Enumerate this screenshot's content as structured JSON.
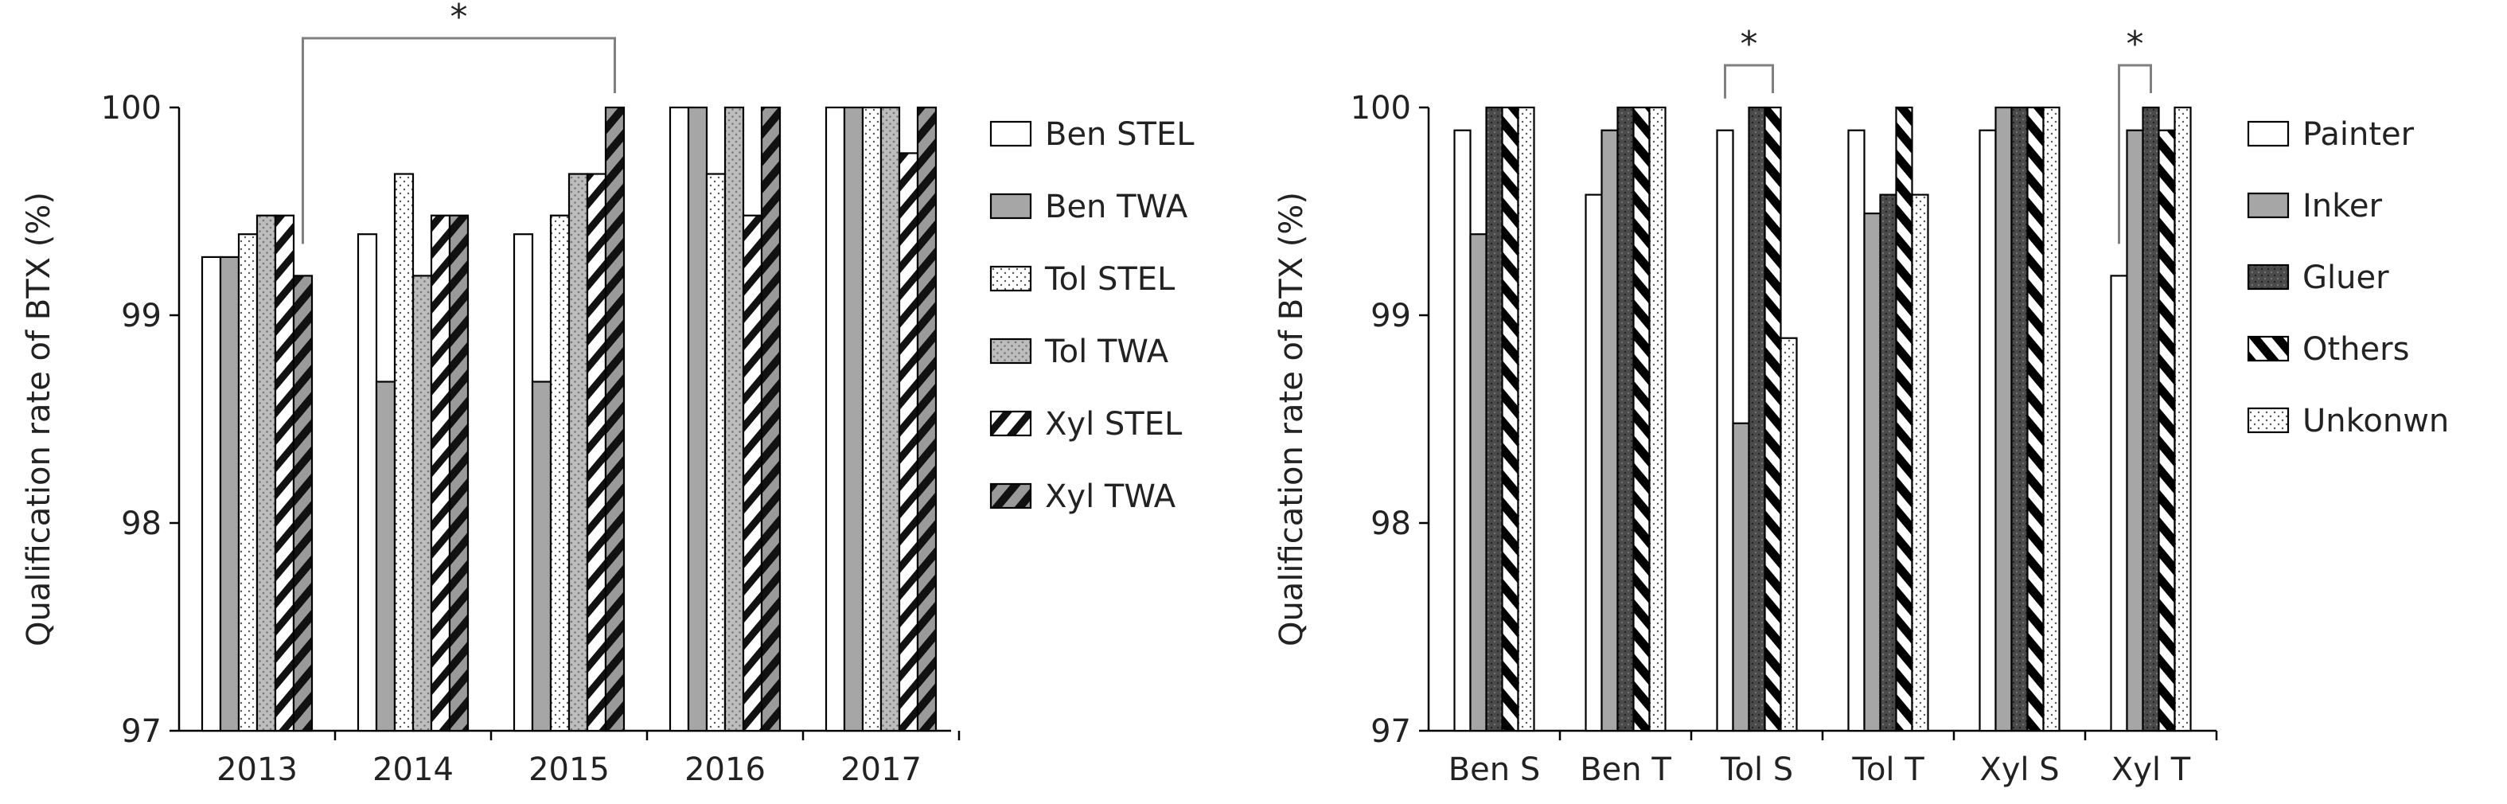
{
  "chart_data": [
    {
      "type": "bar",
      "title": "",
      "xlabel": "",
      "ylabel": "Qualification rate of BTX (%)",
      "ylim": [
        97,
        100
      ],
      "yticks": [
        "97",
        "98",
        "99",
        "100"
      ],
      "grid": false,
      "legend_position": "right",
      "categories": [
        "2013",
        "2014",
        "2015",
        "2016",
        "2017"
      ],
      "series": [
        {
          "name": "Ben STEL",
          "pattern": "white",
          "values": [
            99.28,
            99.39,
            99.39,
            100.0,
            100.0
          ]
        },
        {
          "name": "Ben TWA",
          "pattern": "gray",
          "values": [
            99.28,
            98.68,
            98.68,
            100.0,
            100.0
          ]
        },
        {
          "name": "Tol STEL",
          "pattern": "dotted",
          "values": [
            99.39,
            99.68,
            99.48,
            99.68,
            100.0
          ]
        },
        {
          "name": "Tol TWA",
          "pattern": "gray-dotted",
          "values": [
            99.48,
            99.19,
            99.68,
            100.0,
            100.0
          ]
        },
        {
          "name": "Xyl STEL",
          "pattern": "hatch-thin",
          "values": [
            99.48,
            99.48,
            99.68,
            99.48,
            99.78
          ]
        },
        {
          "name": "Xyl TWA",
          "pattern": "hatch-thick-gray",
          "values": [
            99.19,
            99.48,
            100.0,
            100.0,
            100.0
          ]
        }
      ],
      "annotations": [
        {
          "text": "*",
          "from": {
            "category": "2013",
            "series": 5
          },
          "to": {
            "category": "2015",
            "series": 5
          }
        }
      ]
    },
    {
      "type": "bar",
      "title": "",
      "xlabel": "",
      "ylabel": "Qualification rate of BTX (%)",
      "ylim": [
        97,
        100
      ],
      "yticks": [
        "97",
        "98",
        "99",
        "100"
      ],
      "grid": false,
      "legend_position": "right",
      "categories": [
        "Ben S",
        "Ben T",
        "Tol S",
        "Tol T",
        "Xyl S",
        "Xyl T"
      ],
      "series": [
        {
          "name": "Painter",
          "pattern": "white",
          "values": [
            99.89,
            99.58,
            99.89,
            99.89,
            99.89,
            99.19
          ]
        },
        {
          "name": "Inker",
          "pattern": "gray",
          "values": [
            99.39,
            99.89,
            98.48,
            99.49,
            100.0,
            99.89
          ]
        },
        {
          "name": "Gluer",
          "pattern": "dark-dotted",
          "values": [
            100.0,
            100.0,
            100.0,
            99.58,
            100.0,
            100.0
          ]
        },
        {
          "name": "Others",
          "pattern": "hatch-bold",
          "values": [
            100.0,
            100.0,
            100.0,
            100.0,
            100.0,
            99.89
          ]
        },
        {
          "name": "Unkonwn",
          "pattern": "dotted",
          "values": [
            100.0,
            100.0,
            98.89,
            99.58,
            100.0,
            100.0
          ]
        }
      ],
      "annotations": [
        {
          "text": "*",
          "from": {
            "category": "Tol S",
            "series": 0
          },
          "to": {
            "category": "Tol S",
            "series": 3
          }
        },
        {
          "text": "*",
          "from": {
            "category": "Xyl T",
            "series": 0
          },
          "to": {
            "category": "Xyl T",
            "series": 2
          }
        }
      ]
    }
  ]
}
